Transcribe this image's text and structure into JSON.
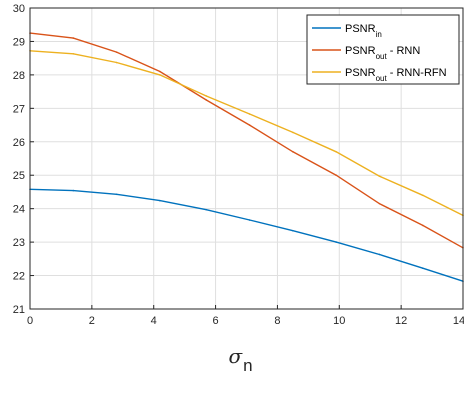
{
  "chart_data": {
    "type": "line",
    "xlabel": {
      "symbol": "σ",
      "subscript": "n"
    },
    "ylabel": "",
    "title": "",
    "xlim": [
      0,
      14
    ],
    "ylim": [
      21,
      30
    ],
    "xticks": [
      0,
      2,
      4,
      6,
      8,
      10,
      12,
      14
    ],
    "yticks": [
      21,
      22,
      23,
      24,
      25,
      26,
      27,
      28,
      29,
      30
    ],
    "grid": true,
    "legend_position": "top-right",
    "series": [
      {
        "name": {
          "base": "PSNR",
          "sub": "in",
          "suffix": ""
        },
        "color": "#0072BD",
        "x": [
          0,
          1.4,
          2.8,
          4.2,
          5.7,
          7.1,
          8.5,
          9.9,
          11.3,
          12.7,
          14
        ],
        "y": [
          24.58,
          24.54,
          24.43,
          24.24,
          23.97,
          23.66,
          23.34,
          23.0,
          22.63,
          22.22,
          21.83
        ]
      },
      {
        "name": {
          "base": "PSNR",
          "sub": "out",
          "suffix": " - RNN"
        },
        "color": "#D95319",
        "x": [
          0,
          1.4,
          2.8,
          4.2,
          5.7,
          7.1,
          8.5,
          9.9,
          11.3,
          12.7,
          14
        ],
        "y": [
          29.25,
          29.1,
          28.68,
          28.1,
          27.25,
          26.5,
          25.7,
          25.0,
          24.15,
          23.5,
          22.83
        ]
      },
      {
        "name": {
          "base": "PSNR",
          "sub": "out",
          "suffix": " - RNN-RFN"
        },
        "color": "#EDB120",
        "x": [
          0,
          1.4,
          2.8,
          4.2,
          5.7,
          7.1,
          8.5,
          9.9,
          11.3,
          12.7,
          14
        ],
        "y": [
          28.72,
          28.63,
          28.37,
          28.0,
          27.37,
          26.83,
          26.28,
          25.7,
          24.97,
          24.4,
          23.8
        ]
      }
    ]
  }
}
